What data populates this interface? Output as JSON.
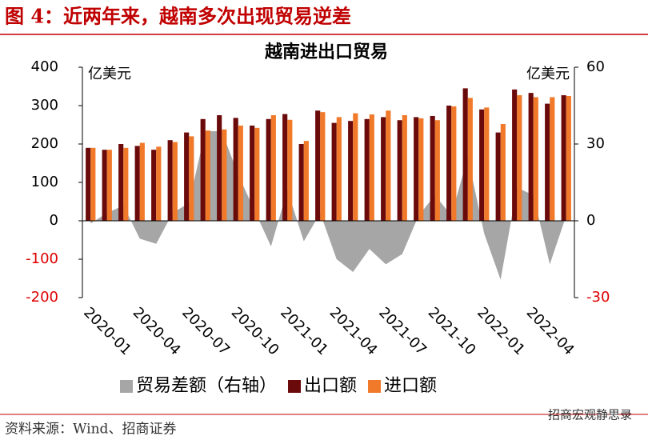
{
  "header": {
    "title": "图 4：近两年来，越南多次出现贸易逆差"
  },
  "chart_data": {
    "type": "bar",
    "title": "越南进出口贸易",
    "y_unit": "亿美元",
    "y2_unit": "亿美元",
    "categories": [
      "2020-01",
      null,
      null,
      "2020-04",
      null,
      null,
      "2020-07",
      null,
      null,
      "2020-10",
      null,
      null,
      "2021-01",
      null,
      null,
      "2021-04",
      null,
      null,
      "2021-07",
      null,
      null,
      "2021-10",
      null,
      null,
      "2022-01",
      null,
      null,
      "2022-04",
      null,
      null
    ],
    "series": [
      {
        "name": "贸易差额（右轴）",
        "type": "area",
        "axis": "y2",
        "color": "#a6a6a6",
        "values": [
          -1,
          3,
          6,
          -7,
          -9,
          3,
          7,
          35,
          35,
          18,
          4,
          -10,
          12,
          -8,
          3,
          -15,
          -20,
          -11,
          -17,
          -13,
          2,
          10,
          2,
          25,
          -5,
          -23,
          13,
          10,
          -17,
          2
        ]
      },
      {
        "name": "出口额",
        "type": "bar",
        "color": "#6b0a0a",
        "values": [
          190,
          185,
          200,
          195,
          185,
          210,
          230,
          265,
          275,
          268,
          248,
          265,
          278,
          200,
          287,
          255,
          260,
          265,
          270,
          262,
          270,
          273,
          300,
          345,
          290,
          230,
          342,
          333,
          305,
          327
        ]
      },
      {
        "name": "进口额",
        "type": "bar",
        "color": "#f0792a",
        "values": [
          190,
          185,
          190,
          203,
          193,
          205,
          220,
          235,
          238,
          248,
          242,
          275,
          263,
          208,
          283,
          270,
          280,
          277,
          287,
          275,
          267,
          262,
          298,
          320,
          295,
          252,
          327,
          322,
          322,
          325
        ]
      }
    ],
    "ylim": [
      -200,
      400
    ],
    "yticks": [
      -200,
      -100,
      0,
      100,
      200,
      300,
      400
    ],
    "y2lim": [
      -30,
      60
    ],
    "y2ticks": [
      -30,
      0,
      30,
      60
    ],
    "negative_tick_color": "#e00000"
  },
  "footer": {
    "source": "资料来源：Wind、招商证券",
    "watermark": "招商宏观静思录"
  }
}
